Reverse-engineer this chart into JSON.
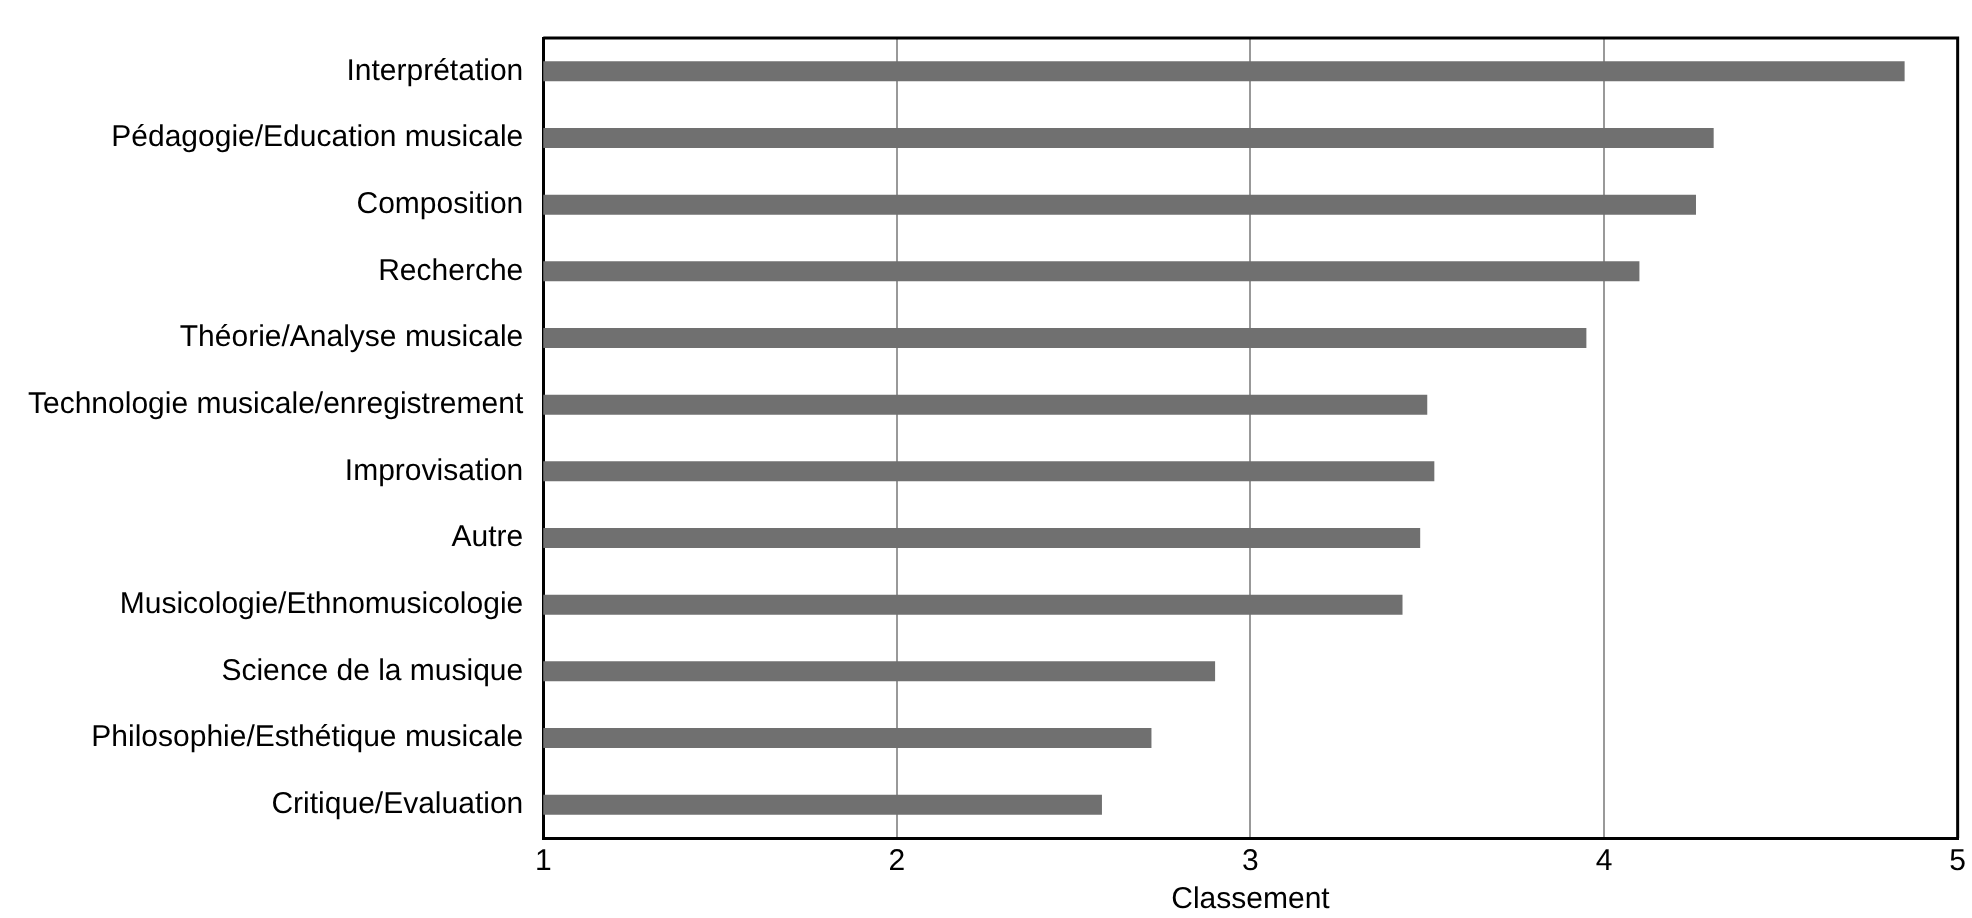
{
  "chart_data": {
    "type": "bar",
    "orientation": "horizontal",
    "xlabel": "Classement",
    "categories": [
      "Interprétation",
      "Pédagogie/Education musicale",
      "Composition",
      "Recherche",
      "Théorie/Analyse musicale",
      "Technologie musicale/enregistrement",
      "Improvisation",
      "Autre",
      "Musicologie/Ethnomusicologie",
      "Science de la musique",
      "Philosophie/Esthétique musicale",
      "Critique/Evaluation"
    ],
    "values": [
      4.85,
      4.31,
      4.26,
      4.1,
      3.95,
      3.5,
      3.52,
      3.48,
      3.43,
      2.9,
      2.72,
      2.58
    ],
    "color": "#707070",
    "xlim": [
      1,
      5
    ],
    "xticks": [
      1,
      2,
      3,
      4,
      5
    ],
    "grid": "x"
  }
}
